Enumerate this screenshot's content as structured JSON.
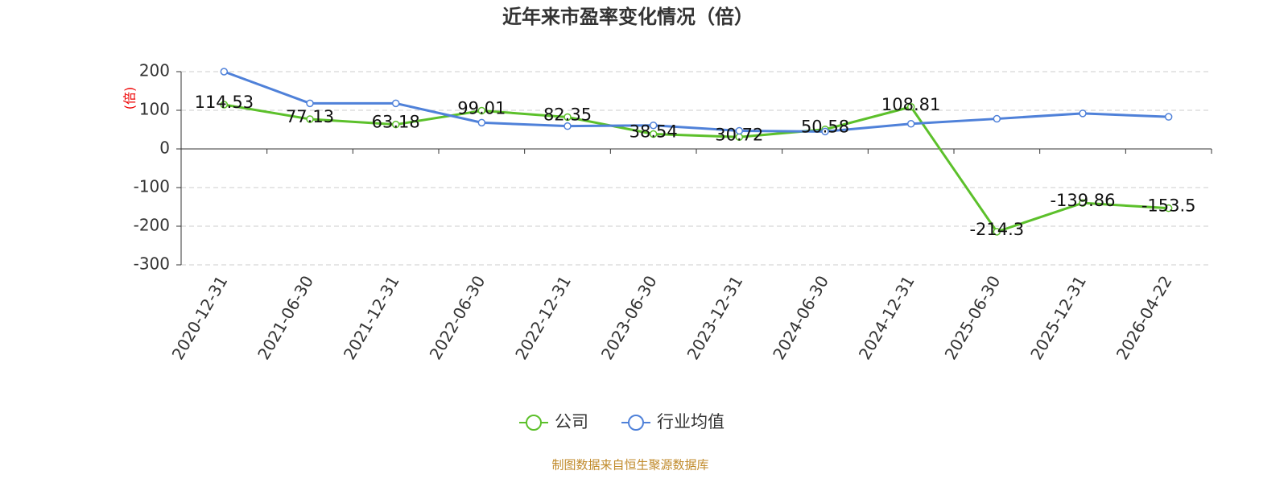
{
  "chart_data": {
    "type": "line",
    "title": "近年来市盈率变化情况（倍）",
    "y_label": "(倍)",
    "source": "制图数据来自恒生聚源数据库",
    "categories": [
      "2020-12-31",
      "2021-06-30",
      "2021-12-31",
      "2022-06-30",
      "2022-12-31",
      "2023-06-30",
      "2023-12-31",
      "2024-06-30",
      "2024-12-31",
      "2025-06-30",
      "2025-12-31",
      "2026-04-22"
    ],
    "series": [
      {
        "name": "公司",
        "color": "#5cc02b",
        "values": [
          114.53,
          77.13,
          63.18,
          99.01,
          82.35,
          38.54,
          30.72,
          50.58,
          108.81,
          -214.3,
          -139.86,
          -153.5
        ],
        "show_labels": true
      },
      {
        "name": "行业均值",
        "color": "#4f81d9",
        "values": [
          200,
          118,
          118,
          68,
          59,
          61,
          47,
          45,
          65,
          78,
          92,
          83
        ],
        "show_labels": false
      }
    ],
    "ylim": [
      -300,
      200
    ],
    "yticks": [
      -300,
      -200,
      -100,
      0,
      100,
      200
    ],
    "grid": true,
    "legend": "bottom"
  }
}
